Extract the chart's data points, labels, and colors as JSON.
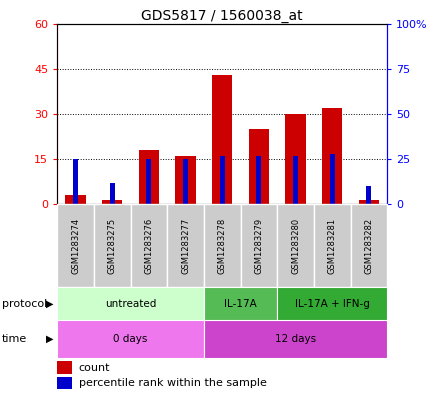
{
  "title": "GDS5817 / 1560038_at",
  "samples": [
    "GSM1283274",
    "GSM1283275",
    "GSM1283276",
    "GSM1283277",
    "GSM1283278",
    "GSM1283279",
    "GSM1283280",
    "GSM1283281",
    "GSM1283282"
  ],
  "count_values": [
    3.0,
    1.5,
    18.0,
    16.0,
    43.0,
    25.0,
    30.0,
    32.0,
    1.5
  ],
  "percentile_values": [
    25.0,
    12.0,
    25.0,
    25.0,
    27.0,
    27.0,
    27.0,
    28.0,
    10.0
  ],
  "left_ylim": [
    0,
    60
  ],
  "right_ylim": [
    0,
    100
  ],
  "left_yticks": [
    0,
    15,
    30,
    45,
    60
  ],
  "right_yticks": [
    0,
    25,
    50,
    75,
    100
  ],
  "right_yticklabels": [
    "0",
    "25",
    "50",
    "75",
    "100%"
  ],
  "bar_color": "#cc0000",
  "percentile_color": "#0000cc",
  "protocol_groups": [
    {
      "label": "untreated",
      "start": 0,
      "end": 4,
      "color": "#ccffcc"
    },
    {
      "label": "IL-17A",
      "start": 4,
      "end": 6,
      "color": "#55bb55"
    },
    {
      "label": "IL-17A + IFN-g",
      "start": 6,
      "end": 9,
      "color": "#33aa33"
    }
  ],
  "time_groups": [
    {
      "label": "0 days",
      "start": 0,
      "end": 4,
      "color": "#ee77ee"
    },
    {
      "label": "12 days",
      "start": 4,
      "end": 9,
      "color": "#cc44cc"
    }
  ],
  "legend_count_label": "count",
  "legend_percentile_label": "percentile rank within the sample",
  "bar_color_red": "#cc0000",
  "percentile_color_blue": "#0000cc",
  "bar_width": 0.55,
  "protocol_label": "protocol",
  "time_label": "time",
  "sample_cell_color": "#cccccc"
}
